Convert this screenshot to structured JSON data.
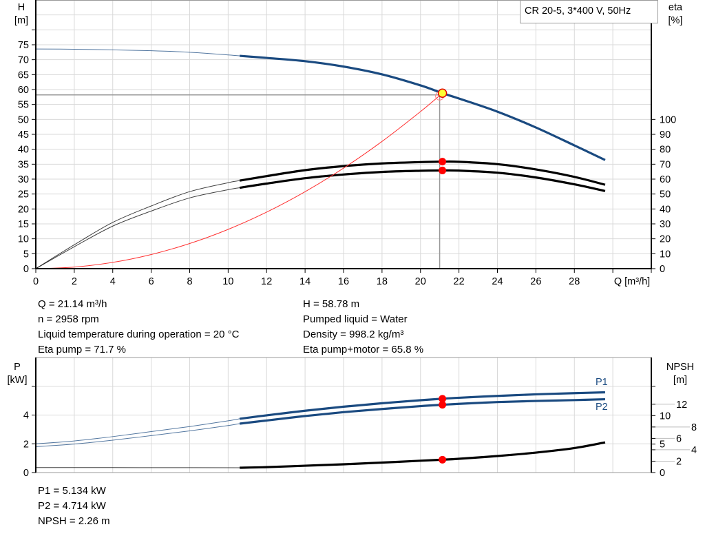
{
  "legend_box": "CR 20-5, 3*400 V, 50Hz",
  "colors": {
    "head": "#1a4a80",
    "power": "#1a4a80",
    "efficiency": "#000000",
    "npsh": "#000000",
    "system": "#ff3030",
    "duty_point_fill": "#ffff33",
    "duty_point_edge": "#e00000",
    "marker": "#ff0000",
    "grid": "#d9d9d9"
  },
  "chart_data": [
    {
      "type": "line",
      "name": "head-efficiency",
      "ylabel_left": [
        "H",
        "[m]"
      ],
      "ylabel_right": [
        "eta",
        "[%]"
      ],
      "xlabel": "Q [m³/h]",
      "xlim": [
        0,
        32
      ],
      "ylim_left": [
        0,
        90
      ],
      "ylim_right": [
        0,
        180
      ],
      "x_ticks": [
        "0",
        "2",
        "4",
        "6",
        "8",
        "10",
        "12",
        "14",
        "16",
        "18",
        "20",
        "22",
        "24",
        "26",
        "28"
      ],
      "y_ticks_left": [
        "0",
        "5",
        "10",
        "15",
        "20",
        "25",
        "30",
        "35",
        "40",
        "45",
        "50",
        "55",
        "60",
        "65",
        "70",
        "75"
      ],
      "y_ticks_right": [
        "0",
        "10",
        "20",
        "30",
        "40",
        "50",
        "60",
        "70",
        "80",
        "90",
        "100"
      ],
      "grid": true,
      "operating_range_start_q": 10.6,
      "series": [
        {
          "key": "H",
          "axis": "left",
          "color_key": "head",
          "x": [
            0,
            2,
            4,
            6,
            8,
            10,
            10.6,
            12,
            14,
            16,
            18,
            20,
            21.14,
            22,
            24,
            26,
            28,
            29.6
          ],
          "y": [
            73.6,
            73.5,
            73.3,
            73.0,
            72.5,
            71.6,
            71.3,
            70.6,
            69.5,
            67.7,
            65.1,
            61.4,
            58.78,
            57.0,
            52.6,
            47.3,
            41.3,
            36.4
          ]
        },
        {
          "key": "eta_pump",
          "axis": "right",
          "color_key": "efficiency",
          "x": [
            0,
            2,
            4,
            6,
            8,
            10,
            10.6,
            12,
            14,
            16,
            18,
            20,
            21.14,
            22,
            24,
            26,
            28,
            29.6
          ],
          "y": [
            0,
            16,
            31,
            42,
            51.6,
            57.6,
            59,
            62,
            66,
            68.7,
            70.5,
            71.4,
            71.7,
            71.6,
            70,
            66.5,
            61.5,
            56.2
          ]
        },
        {
          "key": "eta_pump_motor",
          "axis": "right",
          "color_key": "efficiency",
          "x": [
            0,
            2,
            4,
            6,
            8,
            10,
            10.6,
            12,
            14,
            16,
            18,
            20,
            21.14,
            22,
            24,
            26,
            28,
            29.6
          ],
          "y": [
            0,
            14.7,
            28.5,
            38.6,
            47.4,
            52.9,
            54.2,
            57,
            60.6,
            63.1,
            64.8,
            65.6,
            65.8,
            65.7,
            64.3,
            61.1,
            56.5,
            52
          ]
        },
        {
          "key": "system_curve",
          "axis": "left",
          "color_key": "system",
          "thin": true,
          "x": [
            0,
            2,
            4,
            6,
            8,
            10,
            12,
            14,
            16,
            18,
            20,
            21.14
          ],
          "y": [
            0,
            0.53,
            2.1,
            4.74,
            8.42,
            13.15,
            18.94,
            25.78,
            33.67,
            42.62,
            52.61,
            58.78
          ]
        }
      ],
      "duty_point": {
        "q": 21.14,
        "h": 58.78,
        "eta_pump": 71.7,
        "eta_pump_motor": 65.8
      }
    },
    {
      "type": "line",
      "name": "power-npsh",
      "ylabel_left": [
        "P",
        "[kW]"
      ],
      "ylabel_right": [
        "NPSH",
        "[m]"
      ],
      "xlim": [
        0,
        32
      ],
      "ylim_left": [
        0,
        8
      ],
      "ylim_right": [
        0,
        20.2
      ],
      "y_ticks_left": [
        "0",
        "2",
        "4"
      ],
      "y_ticks_right": [
        "0",
        "2",
        "4",
        "5",
        "6",
        "8",
        "10",
        "12"
      ],
      "grid": true,
      "operating_range_start_q": 10.6,
      "series": [
        {
          "key": "P1",
          "name": "P1",
          "axis": "left",
          "color_key": "power",
          "x": [
            0,
            2,
            4,
            6,
            8,
            10,
            10.6,
            12,
            14,
            16,
            18,
            20,
            21.14,
            22,
            24,
            26,
            28,
            29.6
          ],
          "y": [
            2.0,
            2.2,
            2.5,
            2.85,
            3.2,
            3.6,
            3.74,
            3.98,
            4.3,
            4.58,
            4.82,
            5.03,
            5.134,
            5.2,
            5.33,
            5.44,
            5.52,
            5.58
          ]
        },
        {
          "key": "P2",
          "name": "P2",
          "axis": "left",
          "color_key": "power",
          "x": [
            0,
            2,
            4,
            6,
            8,
            10,
            10.6,
            12,
            14,
            16,
            18,
            20,
            21.14,
            22,
            24,
            26,
            28,
            29.6
          ],
          "y": [
            1.8,
            1.98,
            2.25,
            2.57,
            2.9,
            3.27,
            3.4,
            3.62,
            3.93,
            4.2,
            4.42,
            4.62,
            4.714,
            4.78,
            4.9,
            4.98,
            5.04,
            5.1
          ]
        },
        {
          "key": "NPSH",
          "axis": "right",
          "color_key": "npsh",
          "x": [
            0,
            4,
            8,
            10.6,
            12,
            14,
            16,
            18,
            20,
            21.14,
            22,
            24,
            26,
            28,
            29.6
          ],
          "y": [
            0.88,
            0.87,
            0.86,
            0.85,
            0.95,
            1.2,
            1.45,
            1.75,
            2.08,
            2.26,
            2.42,
            2.9,
            3.5,
            4.3,
            5.3
          ]
        }
      ],
      "duty_point": {
        "q": 21.14,
        "p1": 5.134,
        "p2": 4.714,
        "npsh": 2.26
      }
    }
  ],
  "info_top_left": [
    "Q = 21.14 m³/h",
    "n = 2958 rpm",
    "Liquid temperature during operation = 20 °C",
    "Eta pump = 71.7 %"
  ],
  "info_top_right": [
    "H = 58.78 m",
    "Pumped liquid = Water",
    "Density = 998.2 kg/m³",
    "Eta pump+motor = 65.8 %"
  ],
  "info_bottom": [
    "P1 = 5.134 kW",
    "P2 = 4.714 kW",
    "NPSH = 2.26 m"
  ]
}
